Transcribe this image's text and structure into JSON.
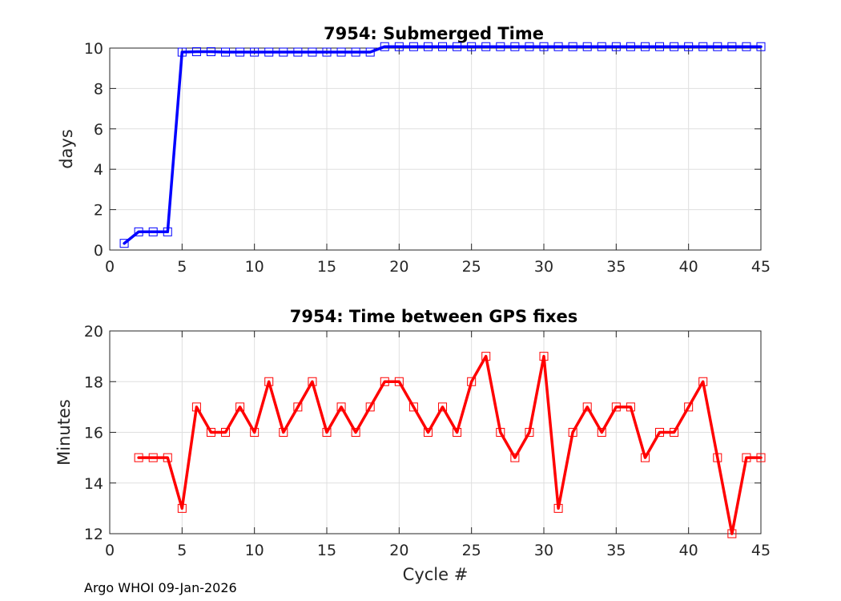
{
  "chart_data": [
    {
      "type": "line",
      "title": "7954: Submerged Time",
      "xlabel": "",
      "ylabel": "days",
      "xlim": [
        0,
        45
      ],
      "ylim": [
        0,
        10
      ],
      "xticks": [
        0,
        5,
        10,
        15,
        20,
        25,
        30,
        35,
        40,
        45
      ],
      "yticks": [
        0,
        2,
        4,
        6,
        8,
        10
      ],
      "grid": true,
      "color": "#0000ff",
      "marker": "square",
      "x": [
        1,
        2,
        3,
        4,
        5,
        6,
        7,
        8,
        9,
        10,
        11,
        12,
        13,
        14,
        15,
        16,
        17,
        18,
        19,
        20,
        21,
        22,
        23,
        24,
        25,
        26,
        27,
        28,
        29,
        30,
        31,
        32,
        33,
        34,
        35,
        36,
        37,
        38,
        39,
        40,
        41,
        42,
        43,
        44,
        45
      ],
      "y": [
        0.33,
        0.9,
        0.9,
        0.9,
        9.8,
        9.82,
        9.82,
        9.8,
        9.8,
        9.8,
        9.8,
        9.8,
        9.8,
        9.8,
        9.8,
        9.8,
        9.8,
        9.8,
        10.07,
        10.07,
        10.07,
        10.07,
        10.07,
        10.07,
        10.07,
        10.07,
        10.07,
        10.07,
        10.07,
        10.07,
        10.07,
        10.07,
        10.07,
        10.07,
        10.07,
        10.07,
        10.07,
        10.07,
        10.07,
        10.07,
        10.07,
        10.07,
        10.07,
        10.07,
        10.07
      ]
    },
    {
      "type": "line",
      "title": "7954: Time between GPS fixes",
      "xlabel": "Cycle #",
      "ylabel": "Minutes",
      "xlim": [
        0,
        45
      ],
      "ylim": [
        12,
        20
      ],
      "xticks": [
        0,
        5,
        10,
        15,
        20,
        25,
        30,
        35,
        40,
        45
      ],
      "yticks": [
        12,
        14,
        16,
        18,
        20
      ],
      "grid": true,
      "color": "#ff0000",
      "marker": "square",
      "x": [
        2,
        3,
        4,
        5,
        6,
        7,
        8,
        9,
        10,
        11,
        12,
        13,
        14,
        15,
        16,
        17,
        18,
        19,
        20,
        21,
        22,
        23,
        24,
        25,
        26,
        27,
        28,
        29,
        30,
        31,
        32,
        33,
        34,
        35,
        36,
        37,
        38,
        39,
        40,
        41,
        42,
        43,
        44,
        45
      ],
      "y": [
        15,
        15,
        15,
        13,
        17,
        16,
        16,
        17,
        16,
        18,
        16,
        17,
        18,
        16,
        17,
        16,
        17,
        18,
        18,
        17,
        16,
        17,
        16,
        18,
        19,
        16,
        15,
        16,
        19,
        13,
        16,
        17,
        16,
        17,
        17,
        15,
        16,
        16,
        17,
        18,
        15,
        12,
        15,
        15
      ]
    }
  ],
  "footer": "Argo WHOI 09-Jan-2026"
}
